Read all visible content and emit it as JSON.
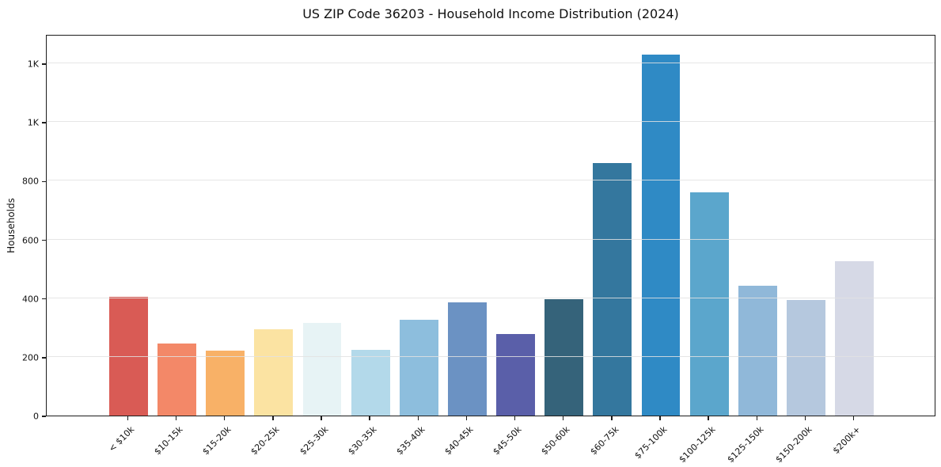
{
  "chart_data": {
    "type": "bar",
    "title": "US ZIP Code 36203 - Household Income Distribution (2024)",
    "xlabel": "",
    "ylabel": "Households",
    "legend": "none",
    "grid": "horizontal",
    "ylim": [
      0,
      1300
    ],
    "yticks": [
      {
        "value": 0,
        "label": "0"
      },
      {
        "value": 200,
        "label": "200"
      },
      {
        "value": 400,
        "label": "400"
      },
      {
        "value": 600,
        "label": "600"
      },
      {
        "value": 800,
        "label": "800"
      },
      {
        "value": 1000,
        "label": "1K"
      },
      {
        "value": 1200,
        "label": "1K"
      }
    ],
    "categories": [
      "< $10k",
      "$10-15k",
      "$15-20k",
      "$20-25k",
      "$25-30k",
      "$30-35k",
      "$35-40k",
      "$40-45k",
      "$45-50k",
      "$50-60k",
      "$60-75k",
      "$75-100k",
      "$100-125k",
      "$125-150k",
      "$150-200k",
      "$200k+"
    ],
    "values": [
      405,
      245,
      220,
      295,
      315,
      225,
      327,
      387,
      278,
      397,
      860,
      1230,
      760,
      443,
      394,
      527
    ],
    "bar_colors": [
      "#d95b55",
      "#f38868",
      "#f8b167",
      "#fbe3a2",
      "#e7f3f5",
      "#b3d9ea",
      "#8dbedd",
      "#6b92c3",
      "#5a5fa9",
      "#35637a",
      "#34779e",
      "#2f8ac5",
      "#5ba6cc",
      "#90b8d9",
      "#b5c8de",
      "#d6d9e6"
    ],
    "spine_color": "#1c1c1c"
  }
}
